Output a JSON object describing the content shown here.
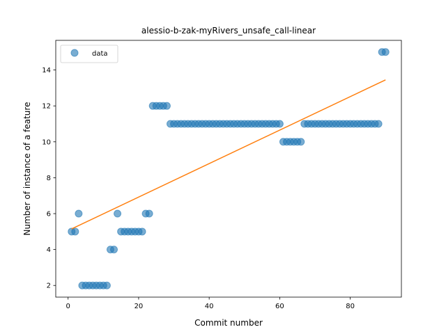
{
  "chart_data": {
    "type": "scatter",
    "title": "alessio-b-zak-myRivers_unsafe_call-linear",
    "xlabel": "Commit number",
    "ylabel": "Number of instance of a feature",
    "xlim": [
      -3.5,
      94.5
    ],
    "ylim": [
      1.35,
      15.65
    ],
    "xticks": [
      0,
      20,
      40,
      60,
      80
    ],
    "yticks": [
      2,
      4,
      6,
      8,
      10,
      12,
      14
    ],
    "legend": {
      "placement": "top-left",
      "entries": [
        "data"
      ]
    },
    "colors": {
      "points": "#1f77b4",
      "fit": "#ff7f0e"
    },
    "series": [
      {
        "name": "data",
        "kind": "scatter",
        "x": [
          1,
          2,
          3,
          4,
          5,
          6,
          7,
          8,
          9,
          10,
          11,
          12,
          13,
          14,
          15,
          16,
          17,
          18,
          19,
          20,
          21,
          22,
          23,
          24,
          25,
          26,
          27,
          28,
          29,
          30,
          31,
          32,
          33,
          34,
          35,
          36,
          37,
          38,
          39,
          40,
          41,
          42,
          43,
          44,
          45,
          46,
          47,
          48,
          49,
          50,
          51,
          52,
          53,
          54,
          55,
          56,
          57,
          58,
          59,
          60,
          61,
          62,
          63,
          64,
          65,
          66,
          67,
          68,
          69,
          70,
          71,
          72,
          73,
          74,
          75,
          76,
          77,
          78,
          79,
          80,
          81,
          82,
          83,
          84,
          85,
          86,
          87,
          88,
          89,
          90
        ],
        "y": [
          5,
          5,
          6,
          2,
          2,
          2,
          2,
          2,
          2,
          2,
          2,
          4,
          4,
          6,
          5,
          5,
          5,
          5,
          5,
          5,
          5,
          6,
          6,
          12,
          12,
          12,
          12,
          12,
          11,
          11,
          11,
          11,
          11,
          11,
          11,
          11,
          11,
          11,
          11,
          11,
          11,
          11,
          11,
          11,
          11,
          11,
          11,
          11,
          11,
          11,
          11,
          11,
          11,
          11,
          11,
          11,
          11,
          11,
          11,
          11,
          10,
          10,
          10,
          10,
          10,
          10,
          11,
          11,
          11,
          11,
          11,
          11,
          11,
          11,
          11,
          11,
          11,
          11,
          11,
          11,
          11,
          11,
          11,
          11,
          11,
          11,
          11,
          11,
          15,
          15
        ]
      },
      {
        "kind": "line",
        "x": [
          1,
          90
        ],
        "y": [
          5.15,
          13.45
        ]
      }
    ]
  }
}
